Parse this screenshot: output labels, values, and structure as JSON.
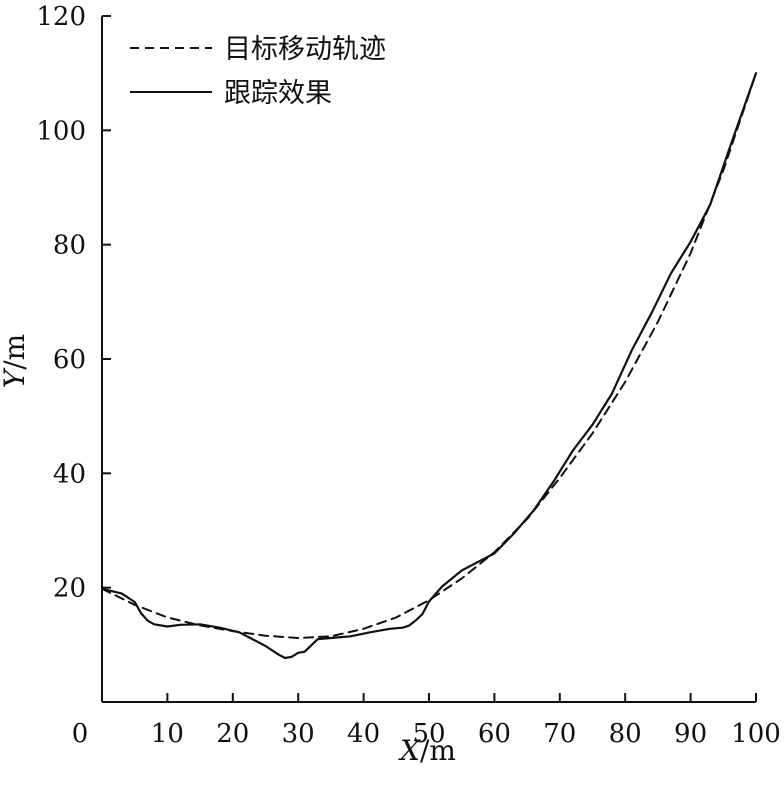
{
  "chart_data": {
    "type": "line",
    "title": "",
    "xlabel_var": "X",
    "xlabel_unit": "/m",
    "ylabel_var": "Y",
    "ylabel_unit": "/m",
    "xlim": [
      0,
      100
    ],
    "ylim": [
      0,
      120
    ],
    "xticks": [
      0,
      10,
      20,
      30,
      40,
      50,
      60,
      70,
      80,
      90,
      100
    ],
    "yticks": [
      20,
      40,
      60,
      80,
      100,
      120
    ],
    "grid": false,
    "legend_position": "top-left",
    "series": [
      {
        "name": "目标移动轨迹",
        "style": "dashed",
        "color": "#111111",
        "x": [
          0,
          5,
          10,
          15,
          20,
          25,
          30,
          35,
          40,
          45,
          50,
          55,
          60,
          65,
          70,
          75,
          80,
          85,
          90,
          95,
          100
        ],
        "y": [
          19.8,
          17.0,
          14.8,
          13.4,
          12.4,
          11.6,
          11.2,
          11.5,
          12.8,
          14.8,
          17.8,
          21.6,
          26.2,
          32.0,
          39.2,
          47.0,
          56.0,
          66.5,
          78.5,
          93.0,
          110.0
        ]
      },
      {
        "name": "跟踪效果",
        "style": "solid",
        "color": "#111111",
        "x": [
          0,
          3,
          5,
          6,
          7,
          8,
          10,
          12,
          15,
          18,
          21,
          23,
          25,
          27,
          28,
          29,
          30,
          31,
          33,
          35,
          38,
          41,
          44,
          46,
          47,
          48,
          49,
          50,
          52,
          55,
          58,
          60,
          63,
          66,
          69,
          72,
          75,
          78,
          81,
          84,
          87,
          90,
          93,
          96,
          100
        ],
        "y": [
          19.8,
          19.0,
          17.5,
          15.5,
          14.2,
          13.6,
          13.2,
          13.5,
          13.6,
          13.0,
          12.2,
          11.0,
          9.8,
          8.3,
          7.7,
          7.9,
          8.6,
          8.8,
          11.0,
          11.2,
          11.5,
          12.2,
          12.8,
          13.0,
          13.4,
          14.3,
          15.4,
          17.6,
          20.2,
          23.0,
          24.8,
          26.0,
          29.5,
          33.5,
          38.5,
          44.0,
          48.5,
          54.0,
          61.5,
          68.0,
          75.0,
          80.5,
          87.0,
          97.0,
          110.0
        ]
      }
    ]
  }
}
